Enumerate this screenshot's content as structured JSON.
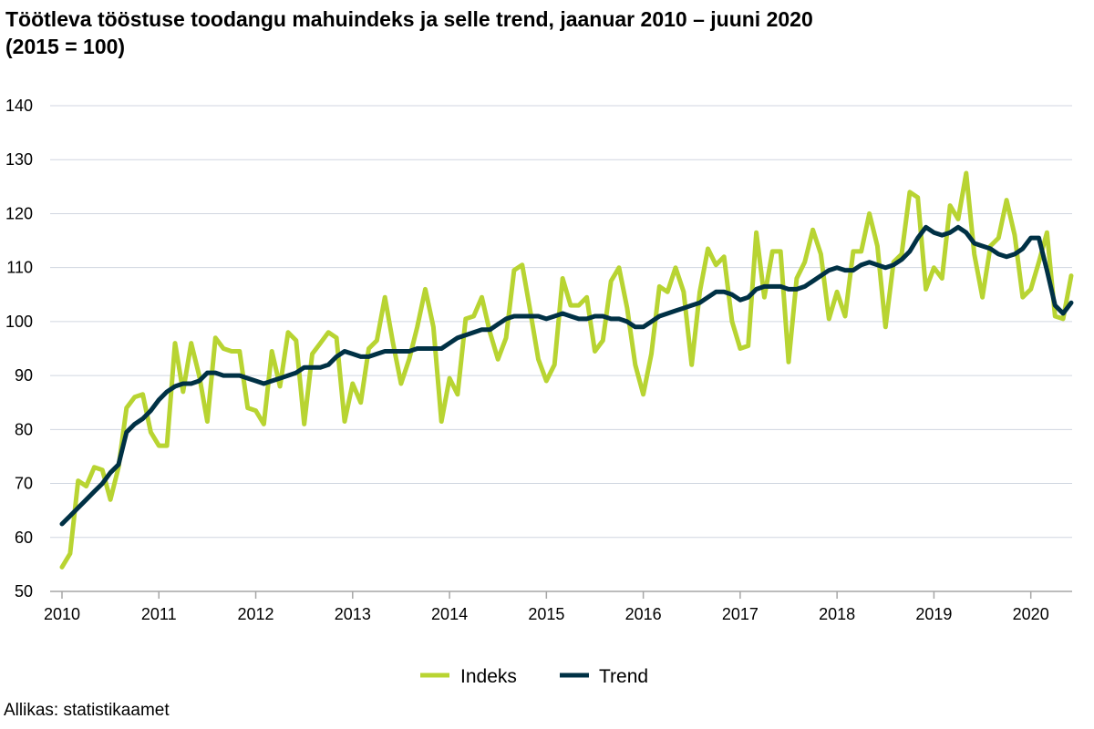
{
  "chart_data": {
    "type": "line",
    "title": "Töötleva tööstuse toodangu mahuindeks ja selle trend, jaanuar 2010 – juuni 2020",
    "subtitle": "(2015 = 100)",
    "xlabel": "",
    "ylabel": "",
    "ylim": [
      50,
      140
    ],
    "yticks": [
      50,
      60,
      70,
      80,
      90,
      100,
      110,
      120,
      130,
      140
    ],
    "xlim": [
      2010,
      2020.417
    ],
    "xticks": [
      2010,
      2011,
      2012,
      2013,
      2014,
      2015,
      2016,
      2017,
      2018,
      2019,
      2020
    ],
    "xtick_labels": [
      "2010",
      "2011",
      "2012",
      "2013",
      "2014",
      "2015",
      "2016",
      "2017",
      "2018",
      "2019",
      "2020"
    ],
    "x_start": "2010-01",
    "x_step": "month",
    "grid": "horizontal",
    "legend": "bottom-center",
    "series": [
      {
        "name": "Indeks",
        "color": "#b8d432",
        "values": [
          54.5,
          57.0,
          70.5,
          69.5,
          73.0,
          72.5,
          67.0,
          73.0,
          84.0,
          86.0,
          86.5,
          79.5,
          77.0,
          77.0,
          96.0,
          87.0,
          96.0,
          90.0,
          81.5,
          97.0,
          95.0,
          94.5,
          94.5,
          84.0,
          83.5,
          81.0,
          94.5,
          88.0,
          98.0,
          96.5,
          81.0,
          94.0,
          96.0,
          98.0,
          97.0,
          81.5,
          88.5,
          85.0,
          95.0,
          96.5,
          104.5,
          96.0,
          88.5,
          93.0,
          99.0,
          106.0,
          99.0,
          81.5,
          89.5,
          86.5,
          100.5,
          101.0,
          104.5,
          98.0,
          93.0,
          97.0,
          109.5,
          110.5,
          102.0,
          93.0,
          89.0,
          92.0,
          108.0,
          103.0,
          103.0,
          104.5,
          94.5,
          96.5,
          107.5,
          110.0,
          102.5,
          92.0,
          86.5,
          94.0,
          106.5,
          105.5,
          110.0,
          105.5,
          92.0,
          105.5,
          113.5,
          110.5,
          112.0,
          100.0,
          95.0,
          95.5,
          116.5,
          104.5,
          113.0,
          113.0,
          92.5,
          108.0,
          111.0,
          117.0,
          112.5,
          100.5,
          105.5,
          101.0,
          113.0,
          113.0,
          120.0,
          114.0,
          99.0,
          111.0,
          112.5,
          124.0,
          123.0,
          106.0,
          110.0,
          108.0,
          121.5,
          119.0,
          127.5,
          112.5,
          104.5,
          114.0,
          115.5,
          122.5,
          116.0,
          104.5,
          106.0,
          111.0,
          116.5,
          101.0,
          100.5,
          108.5
        ]
      },
      {
        "name": "Trend",
        "color": "#003145",
        "values": [
          62.5,
          64.0,
          65.5,
          67.0,
          68.5,
          70.0,
          72.0,
          73.5,
          79.5,
          81.0,
          82.0,
          83.5,
          85.5,
          87.0,
          88.0,
          88.5,
          88.5,
          89.0,
          90.5,
          90.5,
          90.0,
          90.0,
          90.0,
          89.5,
          89.0,
          88.5,
          89.0,
          89.5,
          90.0,
          90.5,
          91.5,
          91.5,
          91.5,
          92.0,
          93.5,
          94.5,
          94.0,
          93.5,
          93.5,
          94.0,
          94.5,
          94.5,
          94.5,
          94.5,
          95.0,
          95.0,
          95.0,
          95.0,
          96.0,
          97.0,
          97.5,
          98.0,
          98.5,
          98.5,
          99.5,
          100.5,
          101.0,
          101.0,
          101.0,
          101.0,
          100.5,
          101.0,
          101.5,
          101.0,
          100.5,
          100.5,
          101.0,
          101.0,
          100.5,
          100.5,
          100.0,
          99.0,
          99.0,
          100.0,
          101.0,
          101.5,
          102.0,
          102.5,
          103.0,
          103.5,
          104.5,
          105.5,
          105.5,
          105.0,
          104.0,
          104.5,
          106.0,
          106.5,
          106.5,
          106.5,
          106.0,
          106.0,
          106.5,
          107.5,
          108.5,
          109.5,
          110.0,
          109.5,
          109.5,
          110.5,
          111.0,
          110.5,
          110.0,
          110.5,
          111.5,
          113.0,
          115.5,
          117.5,
          116.5,
          116.0,
          116.5,
          117.5,
          116.5,
          114.5,
          114.0,
          113.5,
          112.5,
          112.0,
          112.5,
          113.5,
          115.5,
          115.5,
          109.5,
          103.0,
          101.5,
          103.5
        ]
      }
    ]
  },
  "source": "Allikas: statistikaamet"
}
